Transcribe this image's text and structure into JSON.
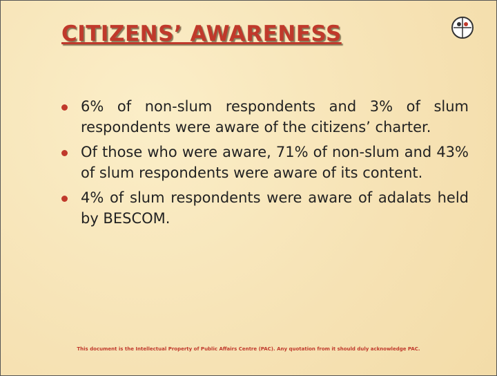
{
  "header": {
    "title": "CITIZENS’ AWARENESS"
  },
  "bullets": [
    "6% of non-slum respondents and 3% of slum respondents were aware of the citizens’ charter.",
    "Of those who were aware, 71% of non-slum and 43% of slum respondents were aware of its content.",
    "4% of slum respondents were aware of adalats held by BESCOM."
  ],
  "footer": "This document is the Intellectual Property of Public Affairs Centre (PAC). Any quotation from it should duly acknowledge PAC."
}
